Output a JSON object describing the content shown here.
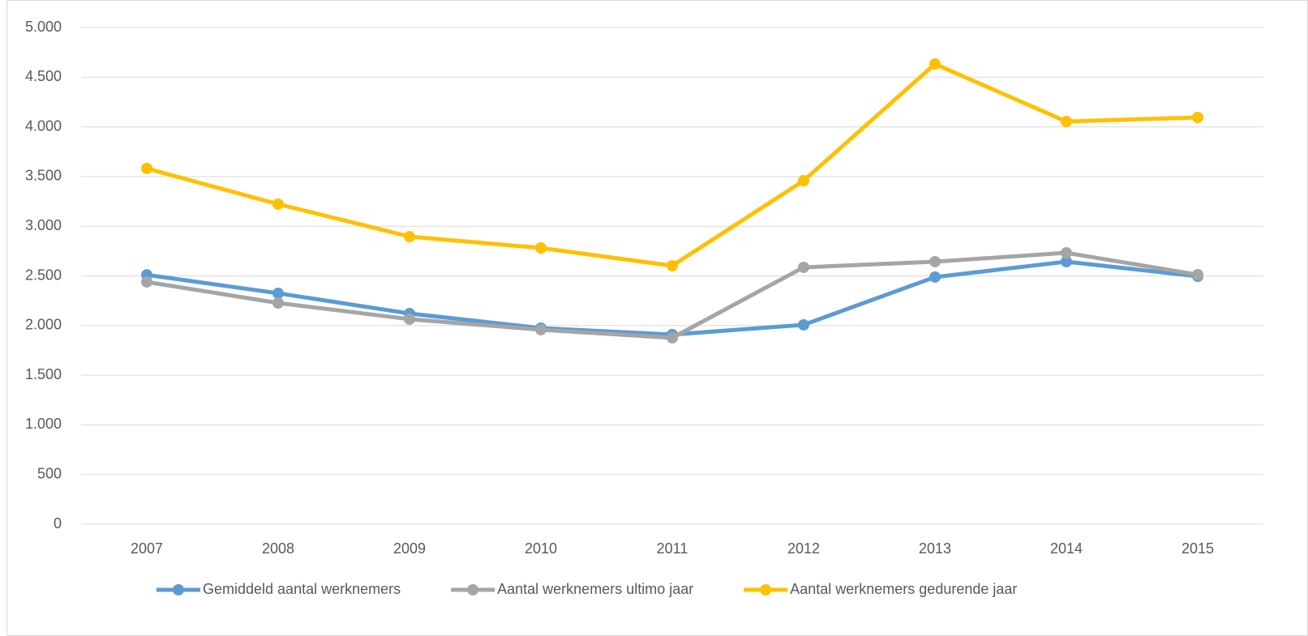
{
  "chart_data": {
    "type": "line",
    "categories": [
      "2007",
      "2008",
      "2009",
      "2010",
      "2011",
      "2012",
      "2013",
      "2014",
      "2015"
    ],
    "series": [
      {
        "name": "Gemiddeld aantal werknemers",
        "color": "#5b9bd5",
        "values": [
          2510,
          2325,
          2121,
          1974,
          1909,
          2007,
          2488,
          2643,
          2496
        ]
      },
      {
        "name": "Aantal werknemers ultimo jaar",
        "color": "#a5a5a5",
        "values": [
          2439,
          2227,
          2064,
          1958,
          1876,
          2586,
          2643,
          2732,
          2512
        ]
      },
      {
        "name": "Aantal werknemers gedurende jaar",
        "color": "#ffc000",
        "values": [
          3581,
          3222,
          2896,
          2781,
          2602,
          3458,
          4633,
          4054,
          4095
        ]
      }
    ],
    "ylim": [
      0,
      5000
    ],
    "yticks": [
      0,
      500,
      {
        "value": 1000,
        "label": "1.000"
      },
      {
        "value": 1500,
        "label": "1.500"
      },
      {
        "value": 2000,
        "label": "2.000"
      },
      {
        "value": 2500,
        "label": "2.500"
      },
      {
        "value": 3000,
        "label": "3.000"
      },
      {
        "value": 3500,
        "label": "3.500"
      },
      {
        "value": 4000,
        "label": "4.000"
      },
      {
        "value": 4500,
        "label": "4.500"
      },
      {
        "value": 5000,
        "label": "5.000"
      }
    ],
    "grid": true,
    "legend": "bottom"
  }
}
